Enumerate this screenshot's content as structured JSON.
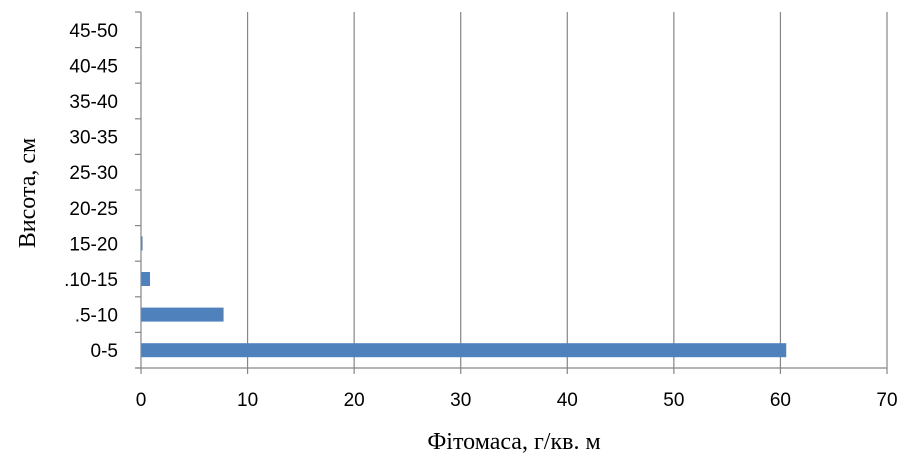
{
  "chart_data": {
    "type": "bar",
    "orientation": "horizontal",
    "categories": [
      "0-5",
      ".5-10",
      ".10-15",
      "15-20",
      "20-25",
      "25-30",
      "30-35",
      "35-40",
      "40-45",
      "45-50"
    ],
    "values": [
      60.5,
      7.7,
      0.8,
      0.1,
      0,
      0,
      0,
      0,
      0,
      0
    ],
    "xlabel": "Фітомаса, г/кв. м",
    "ylabel": "Висота, см",
    "xlim": [
      0,
      70
    ],
    "xticks": [
      "0",
      "10",
      "20",
      "30",
      "40",
      "50",
      "60",
      "70"
    ],
    "grid": "vertical",
    "legend": "none",
    "bar_color": "#4F81BD"
  }
}
